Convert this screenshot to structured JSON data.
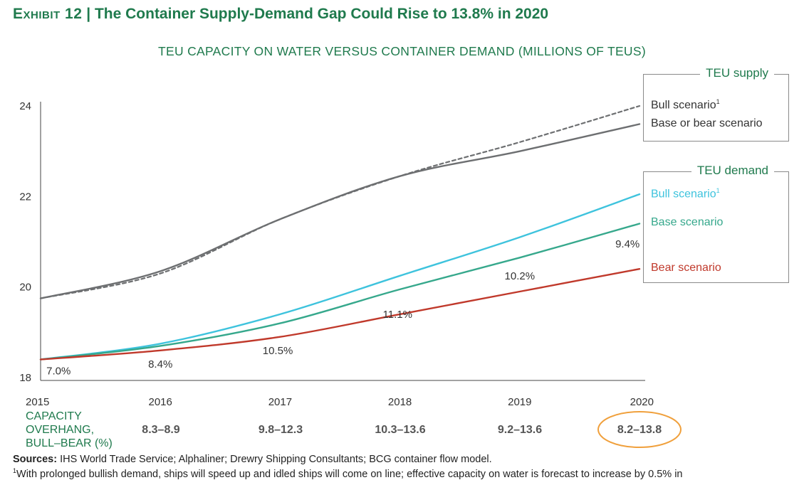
{
  "exhibit": {
    "label": "Exhibit 12",
    "separator": "|",
    "title": "The Container Supply-Demand Gap Could Rise to 13.8% in 2020"
  },
  "colors": {
    "supply": "#6d6f71",
    "bull_demand": "#3ec3dd",
    "base_demand": "#36a88c",
    "bear_demand": "#c0392b",
    "highlight": "#f0a03c",
    "title": "#1f7a4d"
  },
  "chart_data": {
    "type": "line",
    "title": "TEU CAPACITY ON WATER VERSUS CONTAINER DEMAND (MILLIONS OF TEUS)",
    "x": [
      2015,
      2016,
      2017,
      2018,
      2019,
      2020
    ],
    "x_tick_labels": [
      "2015",
      "2016",
      "2017",
      "2018",
      "2019",
      "2020"
    ],
    "ylim": [
      18,
      24
    ],
    "y_ticks": [
      18,
      20,
      22,
      24
    ],
    "y_tick_labels": [
      "18",
      "20",
      "22",
      "24"
    ],
    "series": [
      {
        "name": "Bull scenario",
        "group": "TEU supply",
        "style": "dashed",
        "values": [
          19.75,
          20.3,
          21.5,
          22.45,
          23.2,
          24.0
        ]
      },
      {
        "name": "Base or bear scenario",
        "group": "TEU supply",
        "style": "solid",
        "values": [
          19.75,
          20.35,
          21.5,
          22.45,
          23.0,
          23.6
        ]
      },
      {
        "name": "Bull scenario",
        "group": "TEU demand",
        "style": "solid",
        "values": [
          18.4,
          18.75,
          19.4,
          20.25,
          21.1,
          22.05
        ]
      },
      {
        "name": "Base scenario",
        "group": "TEU demand",
        "style": "solid",
        "values": [
          18.4,
          18.7,
          19.2,
          19.95,
          20.65,
          21.4
        ]
      },
      {
        "name": "Bear scenario",
        "group": "TEU demand",
        "style": "solid",
        "values": [
          18.4,
          18.6,
          18.9,
          19.4,
          19.9,
          20.4
        ]
      }
    ],
    "gap_labels": [
      {
        "text": "7.0%",
        "x": 2015.15,
        "y": 18.15
      },
      {
        "text": "8.4%",
        "x": 2016.0,
        "y": 18.3
      },
      {
        "text": "10.5%",
        "x": 2016.98,
        "y": 18.6
      },
      {
        "text": "11.1%",
        "x": 2017.98,
        "y": 19.4
      },
      {
        "text": "10.2%",
        "x": 2019.0,
        "y": 20.25
      },
      {
        "text": "9.4%",
        "x": 2019.9,
        "y": 20.95
      }
    ]
  },
  "legend": {
    "supply": {
      "title": "TEU supply",
      "items": [
        {
          "label": "Bull scenario",
          "sup": "1"
        },
        {
          "label": "Base or bear scenario",
          "sup": ""
        }
      ]
    },
    "demand": {
      "title": "TEU demand",
      "items": [
        {
          "label": "Bull scenario",
          "sup": "1"
        },
        {
          "label": "Base scenario",
          "sup": ""
        },
        {
          "label": "Bear scenario",
          "sup": ""
        }
      ]
    }
  },
  "overhang": {
    "label_lines": [
      "CAPACITY",
      "OVERHANG,",
      "BULL–BEAR (%)"
    ],
    "values": [
      "8.3–8.9",
      "9.8–12.3",
      "10.3–13.6",
      "9.2–13.6",
      "8.2–13.8"
    ],
    "highlighted_index": 4
  },
  "sources": {
    "label": "Sources:",
    "text": "IHS World Trade Service; Alphaliner; Drewry Shipping Consultants; BCG container flow model."
  },
  "footnote": {
    "marker": "1",
    "text": "With prolonged bullish demand, ships will speed up and idled ships will come on line; effective capacity on water is forecast to increase by 0.5% in"
  }
}
